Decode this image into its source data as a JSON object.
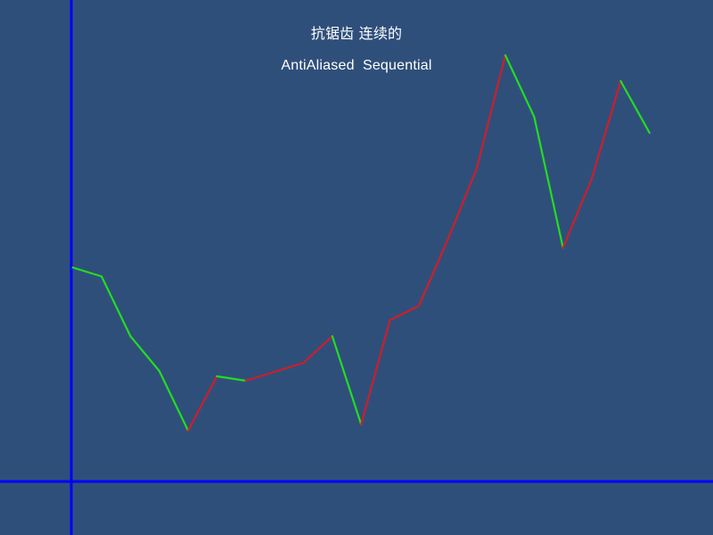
{
  "colors": {
    "background": "#2f4f7b",
    "axis": "#0000ff",
    "rising": "#cc1f2a",
    "falling": "#22dd22",
    "text": "#ffffff"
  },
  "chart_data": {
    "type": "line",
    "title": "抗锯齿 连续的",
    "subtitle": "AntiAliased  Sequential",
    "xlabel": "",
    "ylabel": "",
    "grid": false,
    "legend": "none",
    "x": [
      0,
      1,
      2,
      3,
      4,
      5,
      6,
      7,
      8,
      9,
      10,
      11,
      12,
      13,
      14,
      15,
      16,
      17,
      18,
      19,
      20
    ],
    "y": [
      240,
      230,
      163,
      124,
      57,
      118,
      113,
      123,
      133,
      163,
      64,
      181,
      197,
      271,
      350,
      478,
      409,
      262,
      340,
      449,
      391
    ],
    "xlim": [
      -0.05,
      22.2
    ],
    "ylim": [
      0,
      480
    ],
    "segment_coloring": "rising segments red, falling segments green"
  }
}
